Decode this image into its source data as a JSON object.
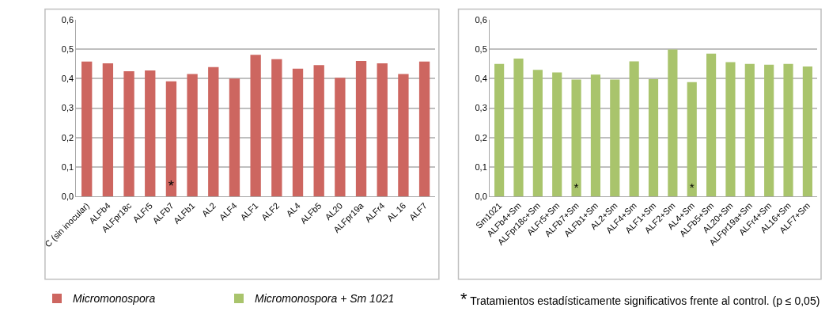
{
  "chart_data": [
    {
      "type": "bar",
      "categories": [
        "C (sin inocular)",
        "ALFb4",
        "ALFpr18c",
        "ALFr5",
        "ALFb7",
        "ALFb1",
        "AL2",
        "ALF4",
        "ALF1",
        "ALF2",
        "AL4",
        "ALFb5",
        "AL20",
        "ALFpr19a",
        "ALFr4",
        "AL 16",
        "ALF7"
      ],
      "series": [
        {
          "name": "Micromonospora",
          "color": "#cd6660",
          "values": [
            0.458,
            0.452,
            0.425,
            0.428,
            0.391,
            0.416,
            0.439,
            0.4,
            0.481,
            0.466,
            0.434,
            0.446,
            0.403,
            0.46,
            0.452,
            0.416,
            0.458
          ],
          "value_labels": [
            null,
            null,
            null,
            null,
            "*",
            null,
            null,
            null,
            null,
            null,
            null,
            null,
            null,
            null,
            null,
            null,
            null
          ]
        }
      ],
      "ylim": [
        0,
        0.6
      ],
      "yticks": [
        {
          "value": 0,
          "label": "0,0"
        },
        {
          "value": 0.1,
          "label": "0,1"
        },
        {
          "value": 0.2,
          "label": "0,2"
        },
        {
          "value": 0.3,
          "label": "0,3"
        },
        {
          "value": 0.4,
          "label": "0,4"
        },
        {
          "value": 0.5,
          "label": "0,5"
        },
        {
          "value": 0.6,
          "label": "0,6"
        }
      ],
      "grid": "y",
      "legend": "bottom"
    },
    {
      "type": "bar",
      "categories": [
        "Sm1021",
        "ALFb4+Sm",
        "ALFpr18c+Sm",
        "ALFr5+Sm",
        "ALFb7+Sm",
        "ALFb1+Sm",
        "AL2+Sm",
        "ALF4+Sm",
        "ALF1+Sm",
        "ALF2+Sm",
        "AL4+Sm",
        "ALFb5+Sm",
        "AL20+Sm",
        "ALFpr19a+Sm",
        "ALFr4+Sm",
        "AL16+Sm",
        "ALF7+Sm"
      ],
      "series": [
        {
          "name": "Micromonospora + Sm 1021",
          "color": "#a9c46c",
          "values": [
            0.45,
            0.468,
            0.43,
            0.421,
            0.397,
            0.414,
            0.397,
            0.459,
            0.398,
            0.499,
            0.388,
            0.485,
            0.456,
            0.45,
            0.447,
            0.45,
            0.441
          ],
          "value_labels": [
            null,
            null,
            null,
            null,
            "*",
            null,
            null,
            null,
            null,
            null,
            "*",
            null,
            null,
            null,
            null,
            null,
            null
          ]
        }
      ],
      "ylim": [
        0,
        0.6
      ],
      "yticks": [
        {
          "value": 0,
          "label": "0,0"
        },
        {
          "value": 0.1,
          "label": "0,1"
        },
        {
          "value": 0.2,
          "label": "0,2"
        },
        {
          "value": 0.3,
          "label": "0,3"
        },
        {
          "value": 0.4,
          "label": "0,4"
        },
        {
          "value": 0.5,
          "label": "0,5"
        },
        {
          "value": 0.6,
          "label": "0,6"
        }
      ],
      "grid": "y",
      "legend": "bottom",
      "annotations": [
        "* Tratamientos estadísticamente significativos frente al control. (p ≤ 0,05)"
      ]
    }
  ]
}
